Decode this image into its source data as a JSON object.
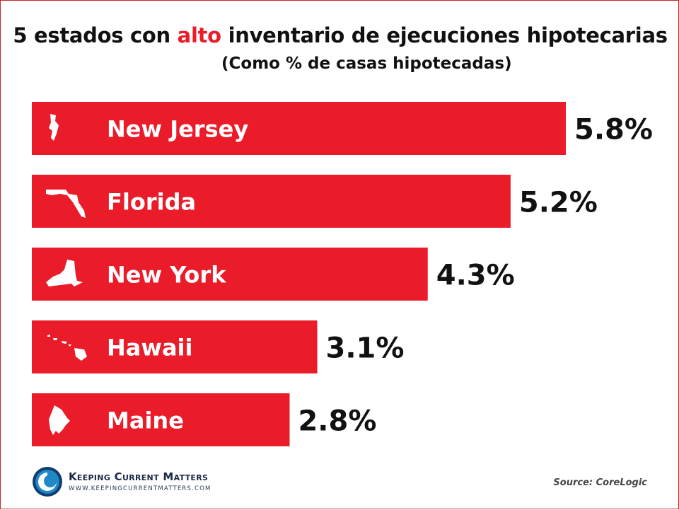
{
  "header": {
    "title_part1": "5 estados con ",
    "title_accent": "alto",
    "title_part2": " inventario de ejecuciones hipotecarias",
    "subtitle": "(Como % de casas hipotecadas)"
  },
  "chart_data": {
    "type": "bar",
    "orientation": "horizontal",
    "title": "5 estados con alto inventario de ejecuciones hipotecarias",
    "subtitle": "(Como % de casas hipotecadas)",
    "categories": [
      "New Jersey",
      "Florida",
      "New York",
      "Hawaii",
      "Maine"
    ],
    "values": [
      5.8,
      5.2,
      4.3,
      3.1,
      2.8
    ],
    "value_labels": [
      "5.8%",
      "5.2%",
      "4.3%",
      "3.1%",
      "2.8%"
    ],
    "icons": [
      "new-jersey-shape-icon",
      "florida-shape-icon",
      "new-york-shape-icon",
      "hawaii-shape-icon",
      "maine-shape-icon"
    ],
    "xlim": [
      0,
      5.8
    ],
    "grid": false,
    "legend": "none",
    "bar_color": "#ea1c2a"
  },
  "footer": {
    "brand": "Keeping Current Matters",
    "website": "WWW.KEEPINGCURRENTMATTERS.COM",
    "source": "Source: CoreLogic"
  },
  "colors": {
    "accent": "#ea1c2a",
    "text": "#111111",
    "logo_blue": "#1e88c8"
  }
}
